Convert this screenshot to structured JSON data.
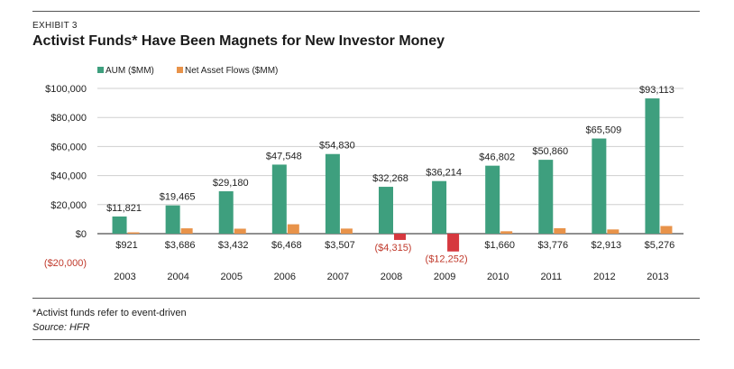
{
  "header": {
    "exhibit": "EXHIBIT 3",
    "title": "Activist Funds* Have Been Magnets for New Investor Money"
  },
  "footer": {
    "note": "*Activist funds refer to event-driven",
    "source": "Source: HFR"
  },
  "colors": {
    "aum": "#3e9f7e",
    "flows": "#e8934a",
    "negative": "#d6383f",
    "negative_text": "#c0392b",
    "grid": "#cfcfcf"
  },
  "chart_data": {
    "type": "bar",
    "title": "Activist Funds* Have Been Magnets for New Investor Money",
    "xlabel": "",
    "ylabel": "",
    "ylim": [
      -20000,
      100000
    ],
    "yticks": [
      100000,
      80000,
      60000,
      40000,
      20000,
      0,
      -20000
    ],
    "ytick_labels": [
      "$100,000",
      "$80,000",
      "$60,000",
      "$40,000",
      "$20,000",
      "$0",
      "($20,000)"
    ],
    "grid": true,
    "legend_position": "top-left",
    "categories": [
      "2003",
      "2004",
      "2005",
      "2006",
      "2007",
      "2008",
      "2009",
      "2010",
      "2011",
      "2012",
      "2013"
    ],
    "series": [
      {
        "name": "AUM ($MM)",
        "values": [
          11821,
          19465,
          29180,
          47548,
          54830,
          32268,
          36214,
          46802,
          50860,
          65509,
          93113
        ],
        "labels": [
          "$11,821",
          "$19,465",
          "$29,180",
          "$47,548",
          "$54,830",
          "$32,268",
          "$36,214",
          "$46,802",
          "$50,860",
          "$65,509",
          "$93,113"
        ]
      },
      {
        "name": "Net Asset  Flows ($MM)",
        "values": [
          921,
          3686,
          3432,
          6468,
          3507,
          -4315,
          -12252,
          1660,
          3776,
          2913,
          5276
        ],
        "labels": [
          "$921",
          "$3,686",
          "$3,432",
          "$6,468",
          "$3,507",
          "($4,315)",
          "($12,252)",
          "$1,660",
          "$3,776",
          "$2,913",
          "$5,276"
        ]
      }
    ]
  }
}
